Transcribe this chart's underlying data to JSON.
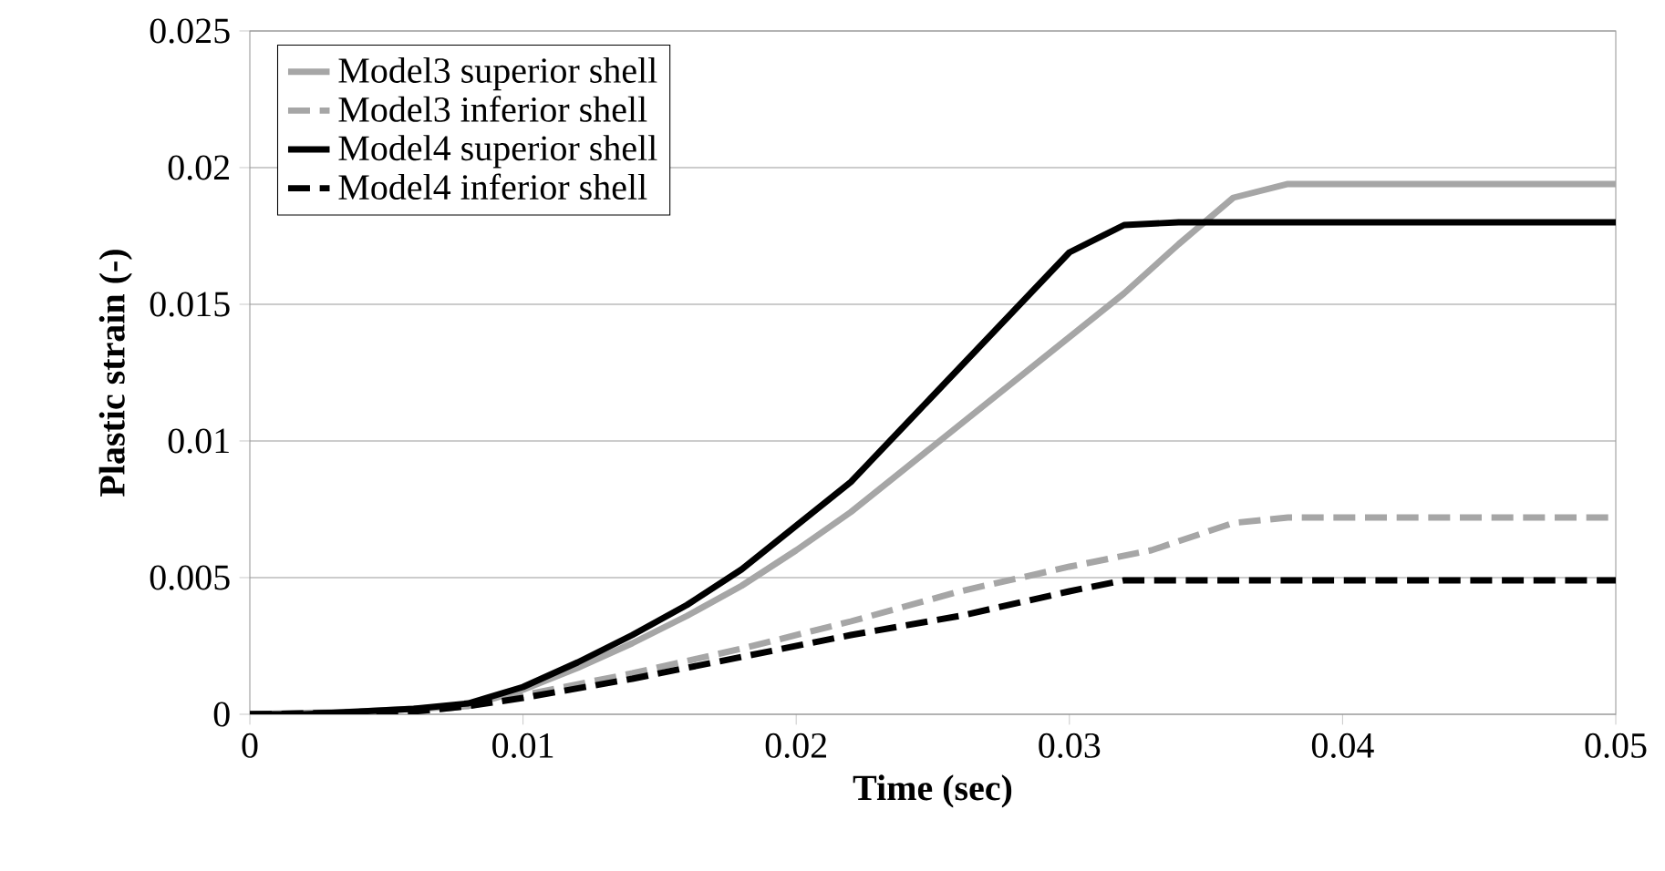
{
  "chart_data": {
    "type": "line",
    "xlabel": "Time (sec)",
    "ylabel": "Plastic strain (-)",
    "xlim": [
      0,
      0.05
    ],
    "xticks": [
      0,
      0.01,
      0.02,
      0.03,
      0.04,
      0.05
    ],
    "ylim": [
      0,
      0.025
    ],
    "yticks": [
      0,
      0.005,
      0.01,
      0.015,
      0.02,
      0.025
    ],
    "grid": "y",
    "legend": "top left",
    "series": [
      {
        "name": "Model3 superior shell",
        "color": "#a6a6a6",
        "line_style": "solid",
        "x": [
          0,
          0.004,
          0.006,
          0.008,
          0.01,
          0.012,
          0.014,
          0.016,
          0.018,
          0.02,
          0.022,
          0.024,
          0.026,
          0.028,
          0.03,
          0.032,
          0.034,
          0.036,
          0.038,
          0.05
        ],
        "values": [
          0,
          0.0001,
          0.0002,
          0.0003,
          0.0009,
          0.0017,
          0.0026,
          0.0036,
          0.0047,
          0.006,
          0.0074,
          0.009,
          0.0106,
          0.0122,
          0.0138,
          0.0154,
          0.0172,
          0.0189,
          0.0194,
          0.0194
        ]
      },
      {
        "name": "Model3 inferior shell",
        "color": "#a6a6a6",
        "line_style": "dashed",
        "x": [
          0,
          0.006,
          0.008,
          0.01,
          0.014,
          0.018,
          0.022,
          0.026,
          0.03,
          0.033,
          0.036,
          0.038,
          0.05
        ],
        "values": [
          0,
          0.0001,
          0.0003,
          0.0007,
          0.0015,
          0.0024,
          0.0034,
          0.0045,
          0.0054,
          0.006,
          0.007,
          0.0072,
          0.0072
        ]
      },
      {
        "name": "Model4 superior shell",
        "color": "#000000",
        "line_style": "solid",
        "x": [
          0,
          0.002,
          0.004,
          0.006,
          0.008,
          0.01,
          0.012,
          0.014,
          0.016,
          0.018,
          0.02,
          0.022,
          0.024,
          0.026,
          0.028,
          0.03,
          0.032,
          0.034,
          0.05
        ],
        "values": [
          0,
          0,
          0.0001,
          0.0002,
          0.0004,
          0.001,
          0.0019,
          0.0029,
          0.004,
          0.0053,
          0.0069,
          0.0085,
          0.0106,
          0.0127,
          0.0148,
          0.0169,
          0.0179,
          0.018,
          0.018
        ]
      },
      {
        "name": "Model4 inferior shell",
        "color": "#000000",
        "line_style": "dashed",
        "x": [
          0,
          0.006,
          0.008,
          0.01,
          0.014,
          0.018,
          0.022,
          0.026,
          0.03,
          0.032,
          0.05
        ],
        "values": [
          0,
          0.0001,
          0.0003,
          0.0006,
          0.0013,
          0.0021,
          0.0029,
          0.0036,
          0.0045,
          0.0049,
          0.0049
        ]
      }
    ]
  }
}
